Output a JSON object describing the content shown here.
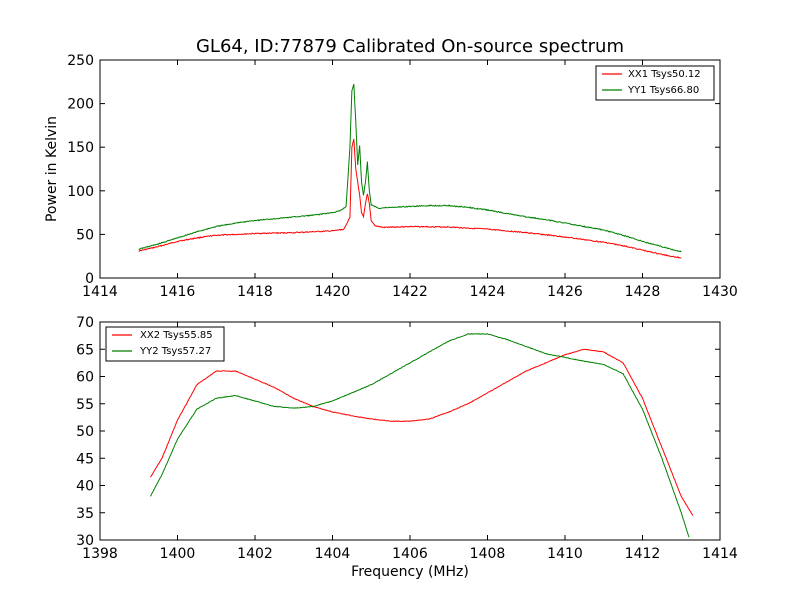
{
  "chart_data": [
    {
      "type": "line",
      "title": "GL64, ID:77879 Calibrated On-source spectrum",
      "xlabel": "",
      "ylabel": "Power in Kelvin",
      "xlim": [
        1414,
        1430
      ],
      "ylim": [
        0,
        250
      ],
      "xticks": [
        1414,
        1416,
        1418,
        1420,
        1422,
        1424,
        1426,
        1428,
        1430
      ],
      "yticks": [
        0,
        50,
        100,
        150,
        200,
        250
      ],
      "legend_position": "top-right",
      "series": [
        {
          "name": "XX1 Tsys50.12",
          "color": "#ff0000",
          "points": [
            [
              1415.0,
              31
            ],
            [
              1415.5,
              36
            ],
            [
              1416.0,
              42
            ],
            [
              1416.5,
              46
            ],
            [
              1417.0,
              49
            ],
            [
              1417.5,
              50
            ],
            [
              1418.0,
              51
            ],
            [
              1418.5,
              51.5
            ],
            [
              1419.0,
              52
            ],
            [
              1419.5,
              53
            ],
            [
              1420.0,
              54
            ],
            [
              1420.3,
              56
            ],
            [
              1420.45,
              70
            ],
            [
              1420.5,
              150
            ],
            [
              1420.55,
              160
            ],
            [
              1420.6,
              125
            ],
            [
              1420.65,
              110
            ],
            [
              1420.7,
              95
            ],
            [
              1420.75,
              75
            ],
            [
              1420.8,
              70
            ],
            [
              1420.85,
              85
            ],
            [
              1420.9,
              97
            ],
            [
              1420.95,
              85
            ],
            [
              1421.0,
              65
            ],
            [
              1421.1,
              60
            ],
            [
              1421.3,
              58
            ],
            [
              1422.0,
              59
            ],
            [
              1423.0,
              58.5
            ],
            [
              1424.0,
              56
            ],
            [
              1425.0,
              52
            ],
            [
              1426.0,
              47
            ],
            [
              1427.0,
              41
            ],
            [
              1427.5,
              37
            ],
            [
              1428.0,
              32
            ],
            [
              1428.5,
              27
            ],
            [
              1429.0,
              23
            ]
          ]
        },
        {
          "name": "YY1 Tsys66.80",
          "color": "#008000",
          "points": [
            [
              1415.0,
              33
            ],
            [
              1415.5,
              39
            ],
            [
              1416.0,
              46
            ],
            [
              1416.5,
              53
            ],
            [
              1417.0,
              59
            ],
            [
              1417.5,
              63
            ],
            [
              1418.0,
              66
            ],
            [
              1418.5,
              68
            ],
            [
              1419.0,
              70
            ],
            [
              1419.5,
              72
            ],
            [
              1420.0,
              75
            ],
            [
              1420.2,
              77
            ],
            [
              1420.35,
              82
            ],
            [
              1420.45,
              150
            ],
            [
              1420.5,
              215
            ],
            [
              1420.55,
              222
            ],
            [
              1420.6,
              180
            ],
            [
              1420.65,
              130
            ],
            [
              1420.7,
              152
            ],
            [
              1420.75,
              110
            ],
            [
              1420.8,
              95
            ],
            [
              1420.85,
              110
            ],
            [
              1420.9,
              133
            ],
            [
              1420.95,
              100
            ],
            [
              1421.0,
              84
            ],
            [
              1421.2,
              80
            ],
            [
              1421.5,
              81
            ],
            [
              1422.0,
              82
            ],
            [
              1422.5,
              83
            ],
            [
              1423.0,
              83
            ],
            [
              1423.5,
              81
            ],
            [
              1424.0,
              78
            ],
            [
              1424.5,
              74
            ],
            [
              1425.0,
              70
            ],
            [
              1425.5,
              67
            ],
            [
              1426.0,
              63
            ],
            [
              1426.5,
              59
            ],
            [
              1427.0,
              55
            ],
            [
              1427.5,
              49
            ],
            [
              1428.0,
              42
            ],
            [
              1428.5,
              36
            ],
            [
              1429.0,
              30
            ]
          ]
        }
      ]
    },
    {
      "type": "line",
      "title": "",
      "xlabel": "Frequency (MHz)",
      "ylabel": "",
      "xlim": [
        1398,
        1414
      ],
      "ylim": [
        30,
        70
      ],
      "xticks": [
        1398,
        1400,
        1402,
        1404,
        1406,
        1408,
        1410,
        1412,
        1414
      ],
      "yticks": [
        30,
        35,
        40,
        45,
        50,
        55,
        60,
        65,
        70
      ],
      "legend_position": "top-left",
      "series": [
        {
          "name": "XX2 Tsys55.85",
          "color": "#ff0000",
          "points": [
            [
              1399.3,
              41.5
            ],
            [
              1399.6,
              45
            ],
            [
              1400.0,
              52
            ],
            [
              1400.5,
              58.5
            ],
            [
              1401.0,
              61
            ],
            [
              1401.5,
              61
            ],
            [
              1402.0,
              59.5
            ],
            [
              1402.5,
              58
            ],
            [
              1403.0,
              56
            ],
            [
              1403.5,
              54.5
            ],
            [
              1404.0,
              53.5
            ],
            [
              1404.5,
              52.8
            ],
            [
              1405.0,
              52.2
            ],
            [
              1405.5,
              51.8
            ],
            [
              1406.0,
              51.8
            ],
            [
              1406.5,
              52.2
            ],
            [
              1407.0,
              53.5
            ],
            [
              1407.5,
              55
            ],
            [
              1408.0,
              57
            ],
            [
              1408.5,
              59
            ],
            [
              1409.0,
              61
            ],
            [
              1409.5,
              62.5
            ],
            [
              1410.0,
              64
            ],
            [
              1410.5,
              65
            ],
            [
              1411.0,
              64.5
            ],
            [
              1411.5,
              62.5
            ],
            [
              1412.0,
              56
            ],
            [
              1412.5,
              47
            ],
            [
              1413.0,
              38
            ],
            [
              1413.3,
              34.5
            ]
          ]
        },
        {
          "name": "YY2 Tsys57.27",
          "color": "#008000",
          "points": [
            [
              1399.3,
              38
            ],
            [
              1399.6,
              42
            ],
            [
              1400.0,
              48.5
            ],
            [
              1400.5,
              54
            ],
            [
              1401.0,
              56
            ],
            [
              1401.5,
              56.5
            ],
            [
              1402.0,
              55.5
            ],
            [
              1402.5,
              54.5
            ],
            [
              1403.0,
              54.2
            ],
            [
              1403.5,
              54.5
            ],
            [
              1404.0,
              55.5
            ],
            [
              1404.5,
              57
            ],
            [
              1405.0,
              58.5
            ],
            [
              1405.5,
              60.5
            ],
            [
              1406.0,
              62.5
            ],
            [
              1406.5,
              64.5
            ],
            [
              1407.0,
              66.5
            ],
            [
              1407.5,
              67.8
            ],
            [
              1408.0,
              67.8
            ],
            [
              1408.5,
              66.8
            ],
            [
              1409.0,
              65.5
            ],
            [
              1409.5,
              64.2
            ],
            [
              1410.0,
              63.5
            ],
            [
              1410.5,
              62.8
            ],
            [
              1411.0,
              62.2
            ],
            [
              1411.5,
              60.5
            ],
            [
              1412.0,
              54
            ],
            [
              1412.5,
              45
            ],
            [
              1413.0,
              35
            ],
            [
              1413.2,
              30.5
            ]
          ]
        }
      ]
    }
  ]
}
